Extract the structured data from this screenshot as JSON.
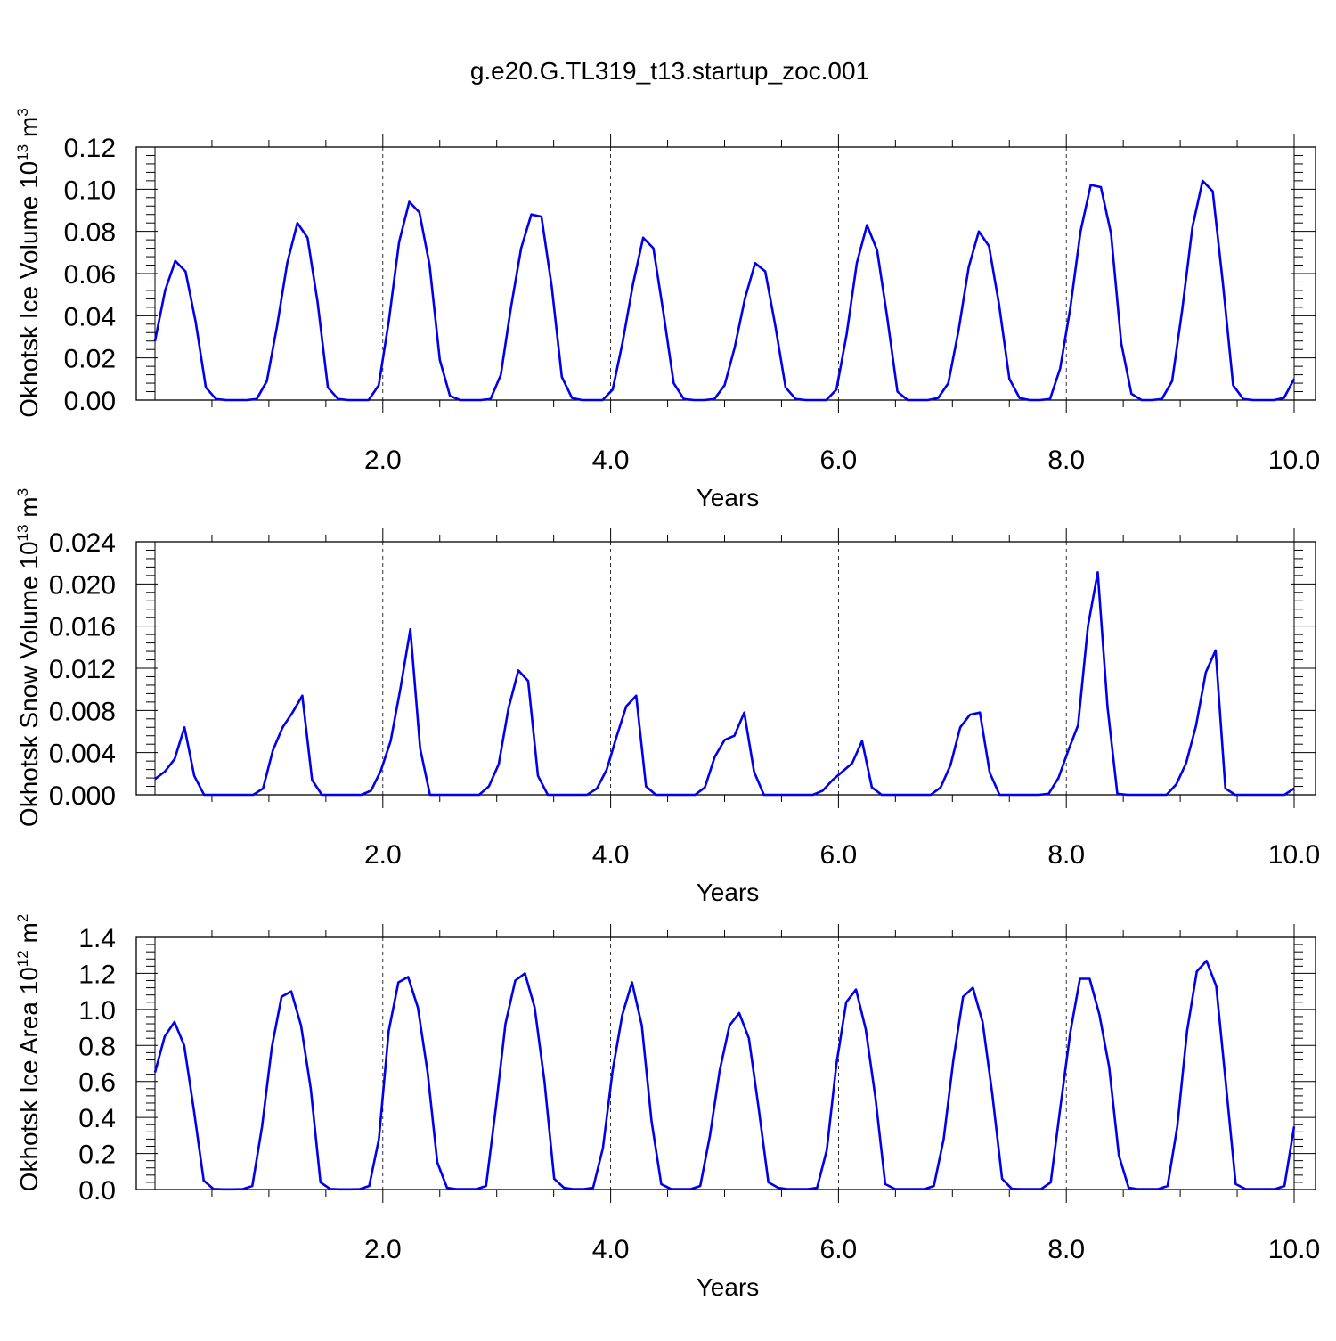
{
  "title": "g.e20.G.TL319_t13.startup_zoc.001",
  "colors": {
    "series": "#0000ee",
    "axes": "#000000",
    "background": "#ffffff"
  },
  "chart_data": [
    {
      "type": "line",
      "ylabel": {
        "text": "Okhotsk Ice Volume 10",
        "exp": "13",
        "unit": " m",
        "unit_exp": "3"
      },
      "xlabel": "Years",
      "xlim": [
        0,
        10
      ],
      "ylim": [
        0,
        0.12
      ],
      "xticks": [
        2,
        4,
        6,
        8,
        10
      ],
      "xtick_labels": [
        "2.0",
        "4.0",
        "6.0",
        "8.0",
        "10.0"
      ],
      "yticks": [
        0,
        0.02,
        0.04,
        0.06,
        0.08,
        0.1,
        0.12
      ],
      "ytick_labels": [
        "0.00",
        "0.02",
        "0.04",
        "0.06",
        "0.08",
        "0.10",
        "0.12"
      ],
      "grid_x_dashed_at": [
        2,
        4,
        6,
        8
      ],
      "series": [
        {
          "values": [
            0.028,
            0.052,
            0.066,
            0.061,
            0.037,
            0.006,
            0.0005,
            0,
            0,
            0,
            0.0005,
            0.009,
            0.035,
            0.065,
            0.084,
            0.077,
            0.046,
            0.006,
            0.0005,
            0,
            0,
            0,
            0.007,
            0.038,
            0.075,
            0.094,
            0.089,
            0.064,
            0.019,
            0.002,
            0,
            0,
            0,
            0.0005,
            0.012,
            0.044,
            0.072,
            0.088,
            0.087,
            0.054,
            0.011,
            0.001,
            0,
            0,
            0,
            0.005,
            0.028,
            0.055,
            0.077,
            0.072,
            0.041,
            0.008,
            0.0005,
            0,
            0,
            0.0005,
            0.007,
            0.025,
            0.048,
            0.065,
            0.061,
            0.035,
            0.006,
            0.0005,
            0,
            0,
            0,
            0.005,
            0.031,
            0.065,
            0.083,
            0.071,
            0.039,
            0.004,
            0,
            0,
            0,
            0.001,
            0.008,
            0.033,
            0.063,
            0.08,
            0.073,
            0.045,
            0.01,
            0.001,
            0,
            0,
            0.0005,
            0.015,
            0.044,
            0.08,
            0.102,
            0.101,
            0.079,
            0.027,
            0.003,
            0,
            0,
            0.0005,
            0.009,
            0.043,
            0.082,
            0.104,
            0.099,
            0.055,
            0.007,
            0.0005,
            0,
            0,
            0,
            0.001,
            0.01
          ]
        }
      ]
    },
    {
      "type": "line",
      "ylabel": {
        "text": "Okhotsk Snow Volume 10",
        "exp": "13",
        "unit": " m",
        "unit_exp": "3"
      },
      "xlabel": "Years",
      "xlim": [
        0,
        10
      ],
      "ylim": [
        0,
        0.024
      ],
      "xticks": [
        2,
        4,
        6,
        8,
        10
      ],
      "xtick_labels": [
        "2.0",
        "4.0",
        "6.0",
        "8.0",
        "10.0"
      ],
      "yticks": [
        0,
        0.004,
        0.008,
        0.012,
        0.016,
        0.02,
        0.024
      ],
      "ytick_labels": [
        "0.000",
        "0.004",
        "0.008",
        "0.012",
        "0.016",
        "0.020",
        "0.024"
      ],
      "grid_x_dashed_at": [
        2,
        4,
        6,
        8
      ],
      "series": [
        {
          "values": [
            0.0015,
            0.0022,
            0.0034,
            0.0064,
            0.0018,
            0,
            0,
            0,
            0,
            0,
            0,
            0.0006,
            0.0042,
            0.0064,
            0.0078,
            0.0094,
            0.0014,
            0,
            0,
            0,
            0,
            0,
            0.0004,
            0.0023,
            0.0051,
            0.0101,
            0.0157,
            0.0044,
            0,
            0,
            0,
            0,
            0,
            0,
            0.0008,
            0.0029,
            0.0082,
            0.0118,
            0.0108,
            0.0018,
            0,
            0,
            0,
            0,
            0,
            0.0006,
            0.0024,
            0.0055,
            0.0084,
            0.0094,
            0.0008,
            0,
            0,
            0,
            0,
            0,
            0.0007,
            0.0036,
            0.0052,
            0.0056,
            0.0078,
            0.0022,
            0,
            0,
            0,
            0,
            0,
            0,
            0.0004,
            0.0014,
            0.0022,
            0.003,
            0.0051,
            0.0007,
            0,
            0,
            0,
            0,
            0,
            0,
            0.0007,
            0.0028,
            0.0064,
            0.0076,
            0.0078,
            0.0021,
            0,
            0,
            0,
            0,
            0,
            0.0001,
            0.0016,
            0.0042,
            0.0066,
            0.016,
            0.0211,
            0.0083,
            0.0001,
            0,
            0,
            0,
            0,
            0,
            0.001,
            0.003,
            0.0065,
            0.0116,
            0.0137,
            0.0006,
            0,
            0,
            0,
            0,
            0,
            0,
            0.0006
          ]
        }
      ]
    },
    {
      "type": "line",
      "ylabel": {
        "text": "Okhotsk Ice Area 10",
        "exp": "12",
        "unit": " m",
        "unit_exp": "2"
      },
      "xlabel": "Years",
      "xlim": [
        0,
        10
      ],
      "ylim": [
        0,
        1.4
      ],
      "xticks": [
        2,
        4,
        6,
        8,
        10
      ],
      "xtick_labels": [
        "2.0",
        "4.0",
        "6.0",
        "8.0",
        "10.0"
      ],
      "yticks": [
        0,
        0.2,
        0.4,
        0.6,
        0.8,
        1.0,
        1.2,
        1.4
      ],
      "ytick_labels": [
        "0.0",
        "0.2",
        "0.4",
        "0.6",
        "0.8",
        "1.0",
        "1.2",
        "1.4"
      ],
      "grid_x_dashed_at": [
        2,
        4,
        6,
        8
      ],
      "series": [
        {
          "values": [
            0.65,
            0.85,
            0.93,
            0.8,
            0.44,
            0.05,
            0.003,
            0.001,
            0.001,
            0.002,
            0.02,
            0.35,
            0.79,
            1.07,
            1.1,
            0.91,
            0.56,
            0.04,
            0.003,
            0.001,
            0.001,
            0.002,
            0.02,
            0.28,
            0.88,
            1.15,
            1.18,
            1.01,
            0.65,
            0.15,
            0.01,
            0.002,
            0.002,
            0.002,
            0.02,
            0.45,
            0.92,
            1.16,
            1.2,
            1.01,
            0.6,
            0.06,
            0.01,
            0.002,
            0.002,
            0.01,
            0.23,
            0.66,
            0.97,
            1.15,
            0.91,
            0.38,
            0.03,
            0.003,
            0.002,
            0.002,
            0.02,
            0.3,
            0.66,
            0.91,
            0.98,
            0.84,
            0.45,
            0.04,
            0.01,
            0.002,
            0.002,
            0.002,
            0.01,
            0.22,
            0.7,
            1.04,
            1.11,
            0.89,
            0.51,
            0.03,
            0.003,
            0.002,
            0.002,
            0.002,
            0.02,
            0.28,
            0.72,
            1.07,
            1.12,
            0.93,
            0.53,
            0.06,
            0.004,
            0.002,
            0.002,
            0.002,
            0.04,
            0.46,
            0.87,
            1.17,
            1.17,
            0.97,
            0.68,
            0.19,
            0.01,
            0.002,
            0.002,
            0.002,
            0.02,
            0.35,
            0.88,
            1.21,
            1.27,
            1.13,
            0.58,
            0.03,
            0.003,
            0.002,
            0.002,
            0.002,
            0.02,
            0.35
          ]
        }
      ]
    }
  ]
}
